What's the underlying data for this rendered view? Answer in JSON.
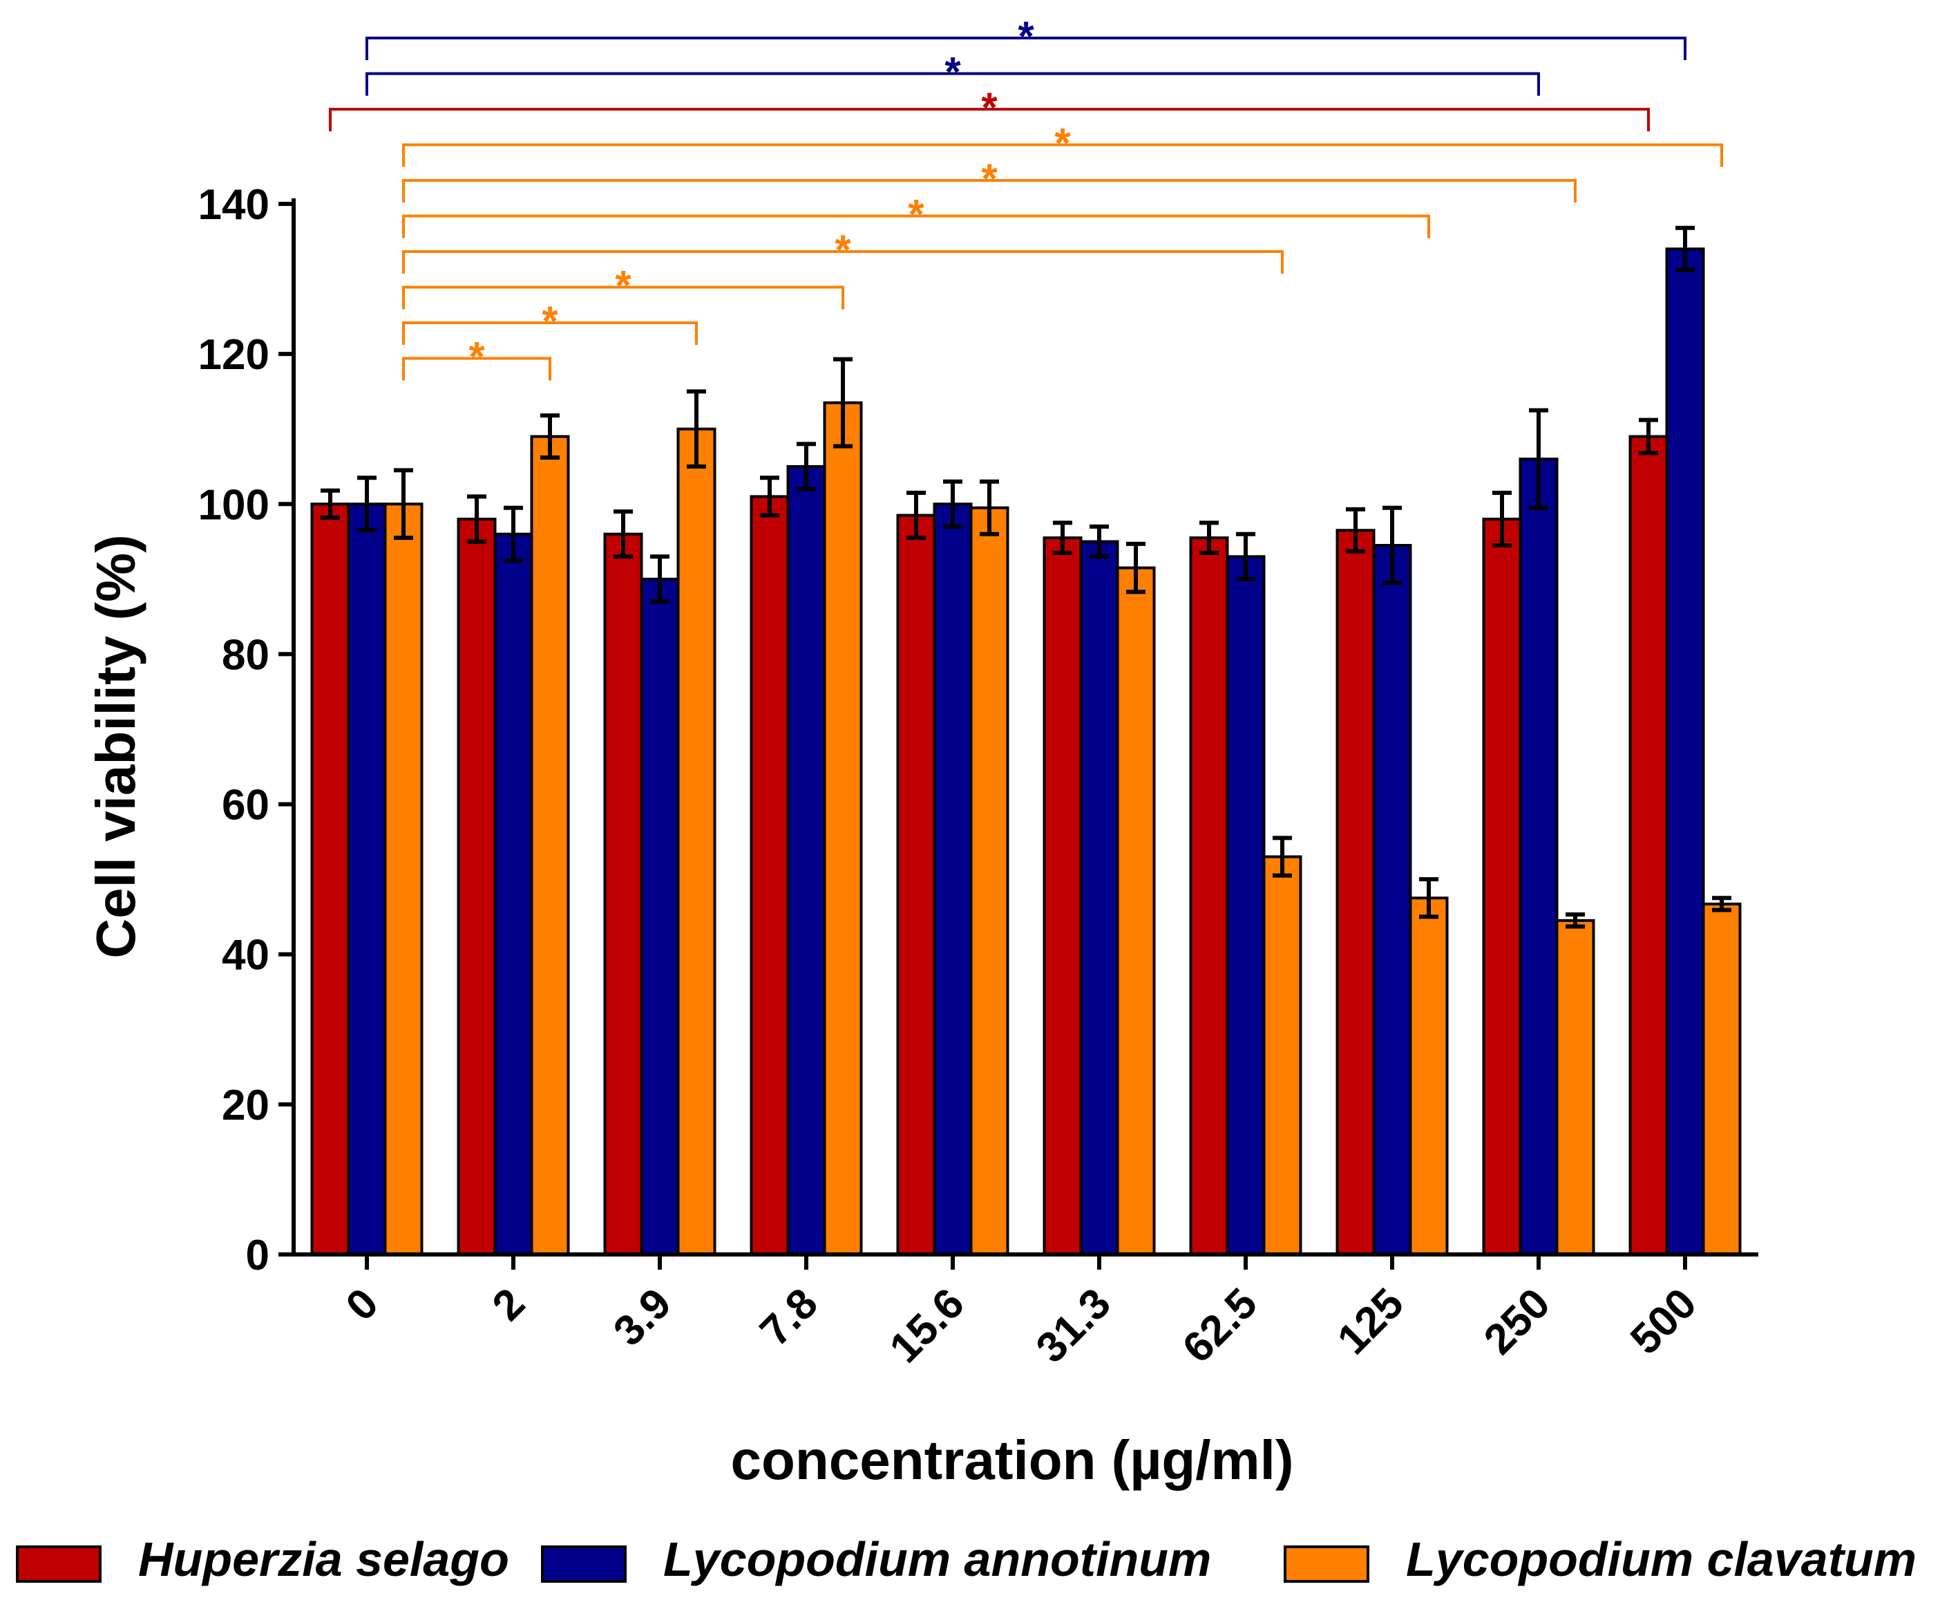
{
  "chart_data": {
    "type": "bar",
    "title": "",
    "xlabel": "concentration (µg/ml)",
    "ylabel": "Cell viability (%)",
    "ylim": [
      0,
      140
    ],
    "yticks": [
      0,
      20,
      40,
      60,
      80,
      100,
      120,
      140
    ],
    "categories": [
      "0",
      "2",
      "3.9",
      "7.8",
      "15.6",
      "31.3",
      "62.5",
      "125",
      "250",
      "500"
    ],
    "series": [
      {
        "name": "Huperzia selago",
        "color": "#c00000",
        "values": [
          100,
          98,
          96,
          101,
          98.5,
          95.5,
          95.5,
          96.5,
          98,
          109
        ],
        "errors": [
          1.8,
          3,
          3,
          2.5,
          3,
          2,
          2,
          2.8,
          3.5,
          2.2
        ]
      },
      {
        "name": "Lycopodium annotinum",
        "color": "#00008b",
        "values": [
          100,
          96,
          90,
          105,
          100,
          95,
          93,
          94.5,
          106,
          134
        ],
        "errors": [
          3.5,
          3.5,
          3,
          3,
          3,
          2,
          3,
          5,
          6.5,
          2.8
        ]
      },
      {
        "name": "Lycopodium clavatum",
        "color": "#ff8000",
        "values": [
          100,
          109,
          110,
          113.5,
          99.5,
          91.5,
          53,
          47.5,
          44.5,
          46.7
        ],
        "errors": [
          4.5,
          2.8,
          5,
          5.8,
          3.5,
          3.2,
          2.5,
          2.5,
          0.8,
          0.8
        ]
      }
    ],
    "significance": [
      {
        "series": "Lycopodium annotinum",
        "from": "0",
        "to": "500",
        "label": "*"
      },
      {
        "series": "Lycopodium annotinum",
        "from": "0",
        "to": "250",
        "label": "*"
      },
      {
        "series": "Huperzia selago",
        "from": "0",
        "to": "500",
        "label": "*"
      },
      {
        "series": "Lycopodium clavatum",
        "from": "0",
        "to": "500",
        "label": "*"
      },
      {
        "series": "Lycopodium clavatum",
        "from": "0",
        "to": "250",
        "label": "*"
      },
      {
        "series": "Lycopodium clavatum",
        "from": "0",
        "to": "125",
        "label": "*"
      },
      {
        "series": "Lycopodium clavatum",
        "from": "0",
        "to": "62.5",
        "label": "*"
      },
      {
        "series": "Lycopodium clavatum",
        "from": "0",
        "to": "7.8",
        "label": "*"
      },
      {
        "series": "Lycopodium clavatum",
        "from": "0",
        "to": "3.9",
        "label": "*"
      },
      {
        "series": "Lycopodium clavatum",
        "from": "0",
        "to": "2",
        "label": "*"
      }
    ],
    "legend": "bottom"
  }
}
